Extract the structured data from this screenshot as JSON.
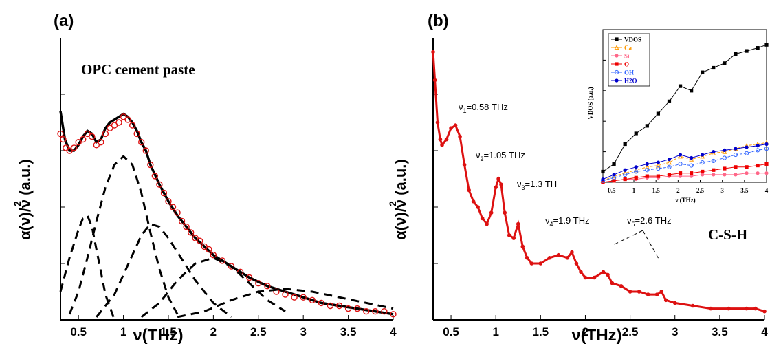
{
  "chart_data": [
    {
      "panel_label": "(a)",
      "type": "line",
      "annotation": "OPC cement paste",
      "xlabel": "ν(THz)",
      "ylabel": "α(ν)/ν  (a.u.)",
      "ylabel_sup": "2",
      "xlim": [
        0.3,
        4.0
      ],
      "ylim": [
        0,
        1.0
      ],
      "xticks": [
        0.5,
        1,
        1.5,
        2,
        2.5,
        3,
        3.5,
        4
      ],
      "xtick_labels": [
        "0.5",
        "1",
        "1.5",
        "2",
        "2.5",
        "3",
        "3.5",
        "4"
      ],
      "series": [
        {
          "style": "line",
          "color": "#000000",
          "x": [
            0.3,
            0.32,
            0.35,
            0.4,
            0.45,
            0.5,
            0.55,
            0.6,
            0.65,
            0.7,
            0.75,
            0.8,
            0.85,
            0.9,
            0.95,
            1.0,
            1.05,
            1.1,
            1.15,
            1.2,
            1.25,
            1.3,
            1.4,
            1.5,
            1.6,
            1.7,
            1.8,
            1.9,
            2.0,
            2.2,
            2.4,
            2.6,
            2.8,
            3.0,
            3.2,
            3.4,
            3.6,
            3.8,
            4.0
          ],
          "y": [
            0.74,
            0.7,
            0.64,
            0.6,
            0.6,
            0.62,
            0.65,
            0.67,
            0.66,
            0.63,
            0.64,
            0.68,
            0.7,
            0.71,
            0.72,
            0.73,
            0.72,
            0.7,
            0.67,
            0.63,
            0.6,
            0.55,
            0.48,
            0.42,
            0.37,
            0.33,
            0.29,
            0.26,
            0.23,
            0.19,
            0.15,
            0.12,
            0.1,
            0.08,
            0.06,
            0.05,
            0.04,
            0.03,
            0.02
          ]
        },
        {
          "style": "markers",
          "color": "#dd1111",
          "x": [
            0.3,
            0.33,
            0.36,
            0.4,
            0.45,
            0.5,
            0.55,
            0.6,
            0.65,
            0.7,
            0.75,
            0.8,
            0.85,
            0.9,
            0.95,
            1.0,
            1.05,
            1.1,
            1.15,
            1.2,
            1.25,
            1.3,
            1.35,
            1.4,
            1.45,
            1.5,
            1.55,
            1.6,
            1.65,
            1.7,
            1.75,
            1.8,
            1.85,
            1.9,
            1.95,
            2.0,
            2.1,
            2.2,
            2.3,
            2.4,
            2.5,
            2.6,
            2.7,
            2.8,
            2.9,
            3.0,
            3.1,
            3.2,
            3.3,
            3.4,
            3.5,
            3.6,
            3.7,
            3.8,
            3.9,
            4.0
          ],
          "y": [
            0.66,
            0.64,
            0.61,
            0.6,
            0.61,
            0.63,
            0.64,
            0.66,
            0.65,
            0.62,
            0.63,
            0.66,
            0.68,
            0.69,
            0.7,
            0.72,
            0.71,
            0.69,
            0.66,
            0.63,
            0.6,
            0.55,
            0.51,
            0.48,
            0.45,
            0.42,
            0.4,
            0.38,
            0.35,
            0.33,
            0.31,
            0.29,
            0.28,
            0.26,
            0.25,
            0.23,
            0.21,
            0.19,
            0.17,
            0.15,
            0.13,
            0.12,
            0.1,
            0.09,
            0.08,
            0.08,
            0.07,
            0.06,
            0.05,
            0.05,
            0.04,
            0.04,
            0.03,
            0.03,
            0.03,
            0.02
          ]
        },
        {
          "style": "dashed",
          "color": "#000000",
          "x": [
            0.3,
            0.4,
            0.5,
            0.55,
            0.6,
            0.65,
            0.7,
            0.8,
            0.9
          ],
          "y": [
            0.1,
            0.22,
            0.32,
            0.36,
            0.37,
            0.33,
            0.25,
            0.09,
            0.0
          ]
        },
        {
          "style": "dashed",
          "color": "#000000",
          "x": [
            0.4,
            0.5,
            0.6,
            0.7,
            0.8,
            0.9,
            1.0,
            1.1,
            1.2,
            1.3,
            1.4,
            1.5,
            1.6
          ],
          "y": [
            0.02,
            0.1,
            0.22,
            0.35,
            0.47,
            0.55,
            0.58,
            0.55,
            0.45,
            0.31,
            0.18,
            0.08,
            0.02
          ]
        },
        {
          "style": "dashed",
          "color": "#000000",
          "x": [
            0.7,
            0.9,
            1.1,
            1.2,
            1.3,
            1.4,
            1.5,
            1.6,
            1.8,
            2.0,
            2.2
          ],
          "y": [
            0.01,
            0.09,
            0.23,
            0.3,
            0.34,
            0.33,
            0.29,
            0.24,
            0.14,
            0.06,
            0.01
          ]
        },
        {
          "style": "dashed",
          "color": "#000000",
          "x": [
            1.2,
            1.4,
            1.6,
            1.8,
            2.0,
            2.2,
            2.4,
            2.6,
            2.8
          ],
          "y": [
            0.01,
            0.06,
            0.14,
            0.2,
            0.22,
            0.19,
            0.13,
            0.07,
            0.03
          ]
        },
        {
          "style": "dashed",
          "color": "#000000",
          "x": [
            1.6,
            1.9,
            2.2,
            2.5,
            2.8,
            3.1,
            3.4,
            3.7,
            4.0
          ],
          "y": [
            0.01,
            0.03,
            0.07,
            0.1,
            0.11,
            0.1,
            0.08,
            0.06,
            0.04
          ]
        }
      ]
    },
    {
      "panel_label": "(b)",
      "type": "line",
      "annotation": "C-S-H",
      "xlabel": "ν(THz)",
      "ylabel": "α(ν)/ν  (a.u.)",
      "ylabel_sup": "2",
      "xlim": [
        0.3,
        4.0
      ],
      "ylim": [
        0,
        1.0
      ],
      "xticks": [
        0.5,
        1,
        1.5,
        2,
        2.5,
        3,
        3.5,
        4
      ],
      "xtick_labels": [
        "0.5",
        "1",
        "1.5",
        "2",
        "2.5",
        "3",
        "3.5",
        "4"
      ],
      "peaks": [
        {
          "sym": "ν",
          "sub": "1",
          "text": "=0.58 THz"
        },
        {
          "sym": "ν",
          "sub": "2",
          "text": "=1.05 THz"
        },
        {
          "sym": "ν",
          "sub": "3",
          "text": "=1.3 TH"
        },
        {
          "sym": "ν",
          "sub": "4",
          "text": "=1.9 THz"
        },
        {
          "sym": "ν",
          "sub": "5",
          "text": "=2.6 THz"
        }
      ],
      "series": [
        {
          "style": "line-markers",
          "color": "#dd1111",
          "x": [
            0.3,
            0.32,
            0.35,
            0.38,
            0.4,
            0.45,
            0.5,
            0.55,
            0.6,
            0.65,
            0.7,
            0.75,
            0.8,
            0.85,
            0.9,
            0.95,
            1.0,
            1.03,
            1.06,
            1.1,
            1.15,
            1.2,
            1.25,
            1.3,
            1.35,
            1.4,
            1.5,
            1.6,
            1.7,
            1.8,
            1.85,
            1.9,
            1.95,
            2.0,
            2.1,
            2.2,
            2.25,
            2.3,
            2.4,
            2.5,
            2.6,
            2.7,
            2.8,
            2.85,
            2.9,
            3.0,
            3.2,
            3.4,
            3.6,
            3.8,
            3.9,
            4.0
          ],
          "y": [
            0.95,
            0.85,
            0.7,
            0.64,
            0.62,
            0.64,
            0.68,
            0.69,
            0.65,
            0.55,
            0.46,
            0.42,
            0.4,
            0.36,
            0.34,
            0.38,
            0.47,
            0.5,
            0.48,
            0.38,
            0.3,
            0.29,
            0.34,
            0.26,
            0.22,
            0.2,
            0.2,
            0.22,
            0.23,
            0.22,
            0.24,
            0.2,
            0.17,
            0.15,
            0.15,
            0.17,
            0.16,
            0.13,
            0.12,
            0.1,
            0.1,
            0.09,
            0.09,
            0.1,
            0.07,
            0.06,
            0.05,
            0.04,
            0.04,
            0.04,
            0.04,
            0.03
          ]
        }
      ]
    },
    {
      "panel_label": "inset",
      "type": "line",
      "xlabel": "ν (THz)",
      "ylabel": "VDOS (a.u.)",
      "xlim": [
        0.3,
        4.0
      ],
      "ylim": [
        0,
        1.0
      ],
      "xticks": [
        0.5,
        1,
        1.5,
        2,
        2.5,
        3,
        3.5,
        4
      ],
      "xtick_labels": [
        "0.5",
        "1",
        "1.5",
        "2",
        "2.5",
        "3",
        "3.5",
        "4"
      ],
      "legend_position": "top-left",
      "series": [
        {
          "name": "VDOS",
          "color": "#000000",
          "marker": "square",
          "x": [
            0.3,
            0.55,
            0.8,
            1.05,
            1.3,
            1.55,
            1.8,
            2.05,
            2.3,
            2.55,
            2.8,
            3.05,
            3.3,
            3.55,
            3.8,
            4.0
          ],
          "y": [
            0.07,
            0.12,
            0.25,
            0.32,
            0.37,
            0.45,
            0.53,
            0.63,
            0.6,
            0.72,
            0.75,
            0.78,
            0.84,
            0.86,
            0.88,
            0.9
          ]
        },
        {
          "name": "Ca",
          "color": "#ff9900",
          "marker": "triangle",
          "x": [
            0.3,
            0.55,
            0.8,
            1.05,
            1.3,
            1.55,
            1.8,
            2.05,
            2.3,
            2.55,
            2.8,
            3.05,
            3.3,
            3.55,
            3.8,
            4.0
          ],
          "y": [
            0.01,
            0.04,
            0.06,
            0.08,
            0.1,
            0.11,
            0.13,
            0.17,
            0.15,
            0.17,
            0.19,
            0.2,
            0.22,
            0.24,
            0.25,
            0.26
          ]
        },
        {
          "name": "Si",
          "color": "#ff6688",
          "marker": "circle",
          "x": [
            0.3,
            0.55,
            0.8,
            1.05,
            1.3,
            1.55,
            1.8,
            2.05,
            2.3,
            2.55,
            2.8,
            3.05,
            3.3,
            3.55,
            3.8,
            4.0
          ],
          "y": [
            0.0,
            0.01,
            0.02,
            0.02,
            0.03,
            0.03,
            0.04,
            0.04,
            0.04,
            0.05,
            0.05,
            0.05,
            0.05,
            0.06,
            0.06,
            0.06
          ]
        },
        {
          "name": "O",
          "color": "#ee0000",
          "marker": "square",
          "x": [
            0.3,
            0.55,
            0.8,
            1.05,
            1.3,
            1.55,
            1.8,
            2.05,
            2.3,
            2.55,
            2.8,
            3.05,
            3.3,
            3.55,
            3.8,
            4.0
          ],
          "y": [
            0.0,
            0.01,
            0.02,
            0.03,
            0.04,
            0.04,
            0.05,
            0.06,
            0.06,
            0.07,
            0.08,
            0.09,
            0.1,
            0.1,
            0.11,
            0.12
          ]
        },
        {
          "name": "OH",
          "color": "#3366ff",
          "marker": "open-circle",
          "x": [
            0.3,
            0.55,
            0.8,
            1.05,
            1.3,
            1.55,
            1.8,
            2.05,
            2.3,
            2.55,
            2.8,
            3.05,
            3.3,
            3.55,
            3.8,
            4.0
          ],
          "y": [
            0.01,
            0.03,
            0.05,
            0.07,
            0.08,
            0.09,
            0.1,
            0.12,
            0.11,
            0.13,
            0.14,
            0.16,
            0.18,
            0.19,
            0.21,
            0.22
          ]
        },
        {
          "name": "H2O",
          "color": "#0000cc",
          "marker": "circle",
          "x": [
            0.3,
            0.55,
            0.8,
            1.05,
            1.3,
            1.55,
            1.8,
            2.05,
            2.3,
            2.55,
            2.8,
            3.05,
            3.3,
            3.55,
            3.8,
            4.0
          ],
          "y": [
            0.02,
            0.05,
            0.08,
            0.1,
            0.12,
            0.13,
            0.15,
            0.18,
            0.16,
            0.18,
            0.2,
            0.21,
            0.22,
            0.23,
            0.24,
            0.25
          ]
        }
      ]
    }
  ]
}
